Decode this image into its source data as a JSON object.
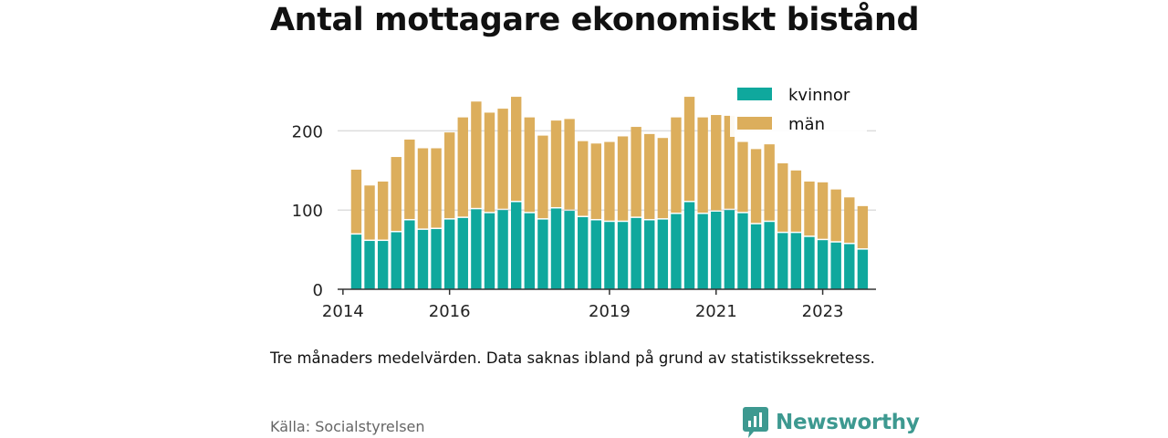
{
  "title": "Antal mottagare ekonomiskt bistånd",
  "subtitle": "Tre månaders medelvärden. Data saknas ibland på grund av statistikssekretess.",
  "source": "Källa: Socialstyrelsen",
  "brand": {
    "name": "Newsworthy",
    "icon": "newsworthy-logo-icon",
    "color": "#3d9990"
  },
  "chart_data": {
    "type": "bar",
    "stacked": true,
    "x": [
      2014.25,
      2014.5,
      2014.75,
      2015.0,
      2015.25,
      2015.5,
      2015.75,
      2016.0,
      2016.25,
      2016.5,
      2016.75,
      2017.0,
      2017.25,
      2017.5,
      2017.75,
      2018.0,
      2018.25,
      2018.5,
      2018.75,
      2019.0,
      2019.25,
      2019.5,
      2019.75,
      2020.0,
      2020.25,
      2020.5,
      2020.75,
      2021.0,
      2021.25,
      2021.5,
      2021.75,
      2022.0,
      2022.25,
      2022.5,
      2022.75,
      2023.0,
      2023.25,
      2023.5,
      2023.75
    ],
    "series": [
      {
        "name": "kvinnor",
        "color": "#0fa89d",
        "values": [
          69,
          61,
          61,
          72,
          87,
          75,
          76,
          88,
          90,
          101,
          96,
          100,
          110,
          96,
          88,
          102,
          99,
          91,
          87,
          85,
          85,
          90,
          87,
          88,
          95,
          110,
          95,
          98,
          100,
          96,
          82,
          85,
          71,
          71,
          66,
          62,
          59,
          57,
          50
        ]
      },
      {
        "name": "män",
        "color": "#dcae5c",
        "values": [
          82,
          70,
          75,
          95,
          102,
          103,
          102,
          110,
          127,
          136,
          127,
          128,
          133,
          121,
          106,
          111,
          116,
          96,
          97,
          101,
          108,
          115,
          109,
          103,
          122,
          133,
          122,
          122,
          119,
          90,
          95,
          98,
          88,
          79,
          70,
          73,
          67,
          59,
          55
        ]
      }
    ],
    "xticks": [
      2014,
      2016,
      2019,
      2021,
      2023
    ],
    "yticks": [
      0,
      100,
      200
    ],
    "ylim": [
      0,
      250
    ],
    "xlim": [
      2013.9,
      2024.0
    ],
    "grid": "horizontal",
    "legend": "top-right"
  }
}
